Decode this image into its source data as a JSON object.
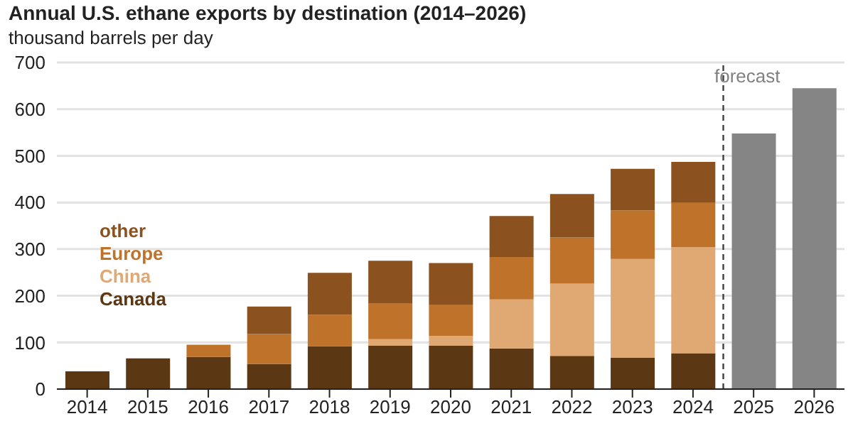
{
  "chart_data": {
    "type": "bar",
    "title": "Annual U.S. ethane exports by destination (2014–2026)",
    "ylabel": "thousand barrels per day",
    "x": [
      2014,
      2015,
      2016,
      2017,
      2018,
      2019,
      2020,
      2021,
      2022,
      2023,
      2024,
      2025,
      2026
    ],
    "xlim": [
      2013.5,
      2026.5
    ],
    "xticks": [
      2014,
      2015,
      2016,
      2017,
      2018,
      2019,
      2020,
      2021,
      2022,
      2023,
      2024,
      2025,
      2026
    ],
    "ylim": [
      0,
      700
    ],
    "yticks": [
      0,
      100,
      200,
      300,
      400,
      500,
      600,
      700
    ],
    "grid": "y",
    "stacked": true,
    "legend": "left",
    "series": [
      {
        "name": "Canada",
        "color": "#5c3714",
        "values": [
          38,
          66,
          69,
          54,
          92,
          93,
          93,
          87,
          71,
          67,
          77,
          null,
          null
        ]
      },
      {
        "name": "China",
        "color": "#e0a872",
        "values": [
          null,
          null,
          null,
          null,
          null,
          14,
          21,
          105,
          155,
          212,
          227,
          null,
          null
        ]
      },
      {
        "name": "Europe",
        "color": "#bf732a",
        "values": [
          null,
          null,
          26,
          64,
          67,
          77,
          67,
          91,
          99,
          104,
          95,
          null,
          null
        ]
      },
      {
        "name": "other",
        "color": "#8b5220",
        "values": [
          null,
          null,
          null,
          59,
          90,
          91,
          89,
          88,
          93,
          89,
          88,
          null,
          null
        ]
      },
      {
        "color": "#858585",
        "values": [
          null,
          null,
          null,
          null,
          null,
          null,
          null,
          null,
          null,
          null,
          null,
          548,
          645
        ]
      }
    ],
    "ref_lines": [
      {
        "axis": "x",
        "value": 2024.5,
        "label": "forecast",
        "color": "#404040",
        "line_style": "dashed"
      }
    ]
  }
}
